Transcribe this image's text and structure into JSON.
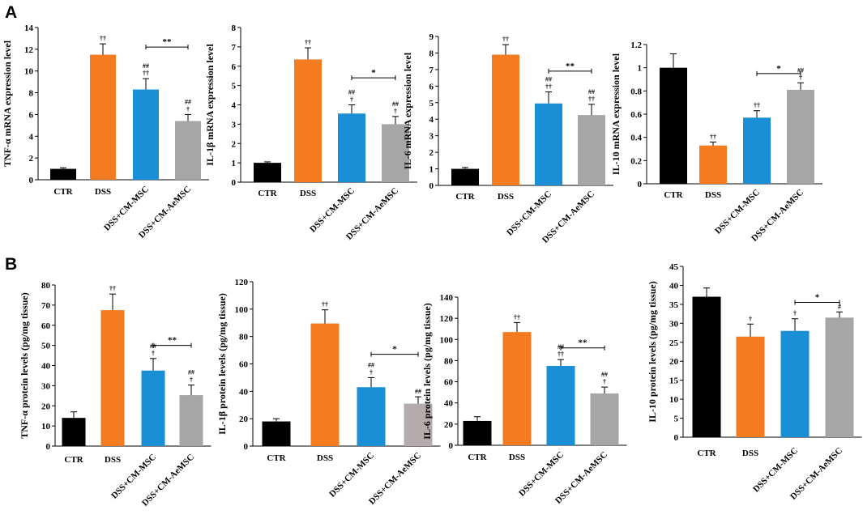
{
  "panels": [
    {
      "letter": "A"
    },
    {
      "letter": "B"
    }
  ],
  "colors": {
    "CTR": "#000000",
    "DSS": "#f47b20",
    "DSS+CM-MSC": "#1a8fd6",
    "DSS+CM-AeMSC": "#a6a6a6",
    "DSS+CM-AeMSC-alt": "#b4acac"
  },
  "chart_data": [
    {
      "type": "bar",
      "panel": "A",
      "ylabel": "TNF-α mRNA expression level",
      "ylim": [
        0,
        14
      ],
      "yticks": [
        0,
        2,
        4,
        6,
        8,
        10,
        12,
        14
      ],
      "categories": [
        "CTR",
        "DSS",
        "DSS+CM-MSC",
        "DSS+CM-AeMSC"
      ],
      "values": [
        1.0,
        11.5,
        8.3,
        5.4
      ],
      "errors": [
        0.1,
        1.0,
        1.0,
        0.6
      ],
      "annotations": [
        [],
        [
          "††"
        ],
        [
          "##",
          "††"
        ],
        [
          "##",
          "†"
        ]
      ],
      "sig": {
        "from": 2,
        "to": 3,
        "y": 12.2,
        "label": "**"
      }
    },
    {
      "type": "bar",
      "panel": "A",
      "ylabel": "IL-1β mRNA expression level",
      "ylim": [
        0,
        8
      ],
      "yticks": [
        0,
        1,
        2,
        3,
        4,
        5,
        6,
        7,
        8
      ],
      "categories": [
        "CTR",
        "DSS",
        "DSS+CM-MSC",
        "DSS+CM-AeMSC"
      ],
      "values": [
        1.0,
        6.35,
        3.55,
        3.0
      ],
      "errors": [
        0.05,
        0.6,
        0.45,
        0.4
      ],
      "annotations": [
        [],
        [
          "††"
        ],
        [
          "##",
          "†"
        ],
        [
          "##",
          "†"
        ]
      ],
      "sig": {
        "from": 2,
        "to": 3,
        "y": 5.4,
        "label": "*"
      }
    },
    {
      "type": "bar",
      "panel": "A",
      "ylabel": "IL-6 mRNA expression level",
      "ylim": [
        0,
        9
      ],
      "yticks": [
        0,
        1,
        2,
        3,
        4,
        5,
        6,
        7,
        8,
        9
      ],
      "categories": [
        "CTR",
        "DSS",
        "DSS+CM-MSC",
        "DSS+CM-AeMSC"
      ],
      "values": [
        1.0,
        7.9,
        4.95,
        4.25
      ],
      "errors": [
        0.08,
        0.6,
        0.7,
        0.65
      ],
      "annotations": [
        [],
        [
          "††"
        ],
        [
          "##",
          "††"
        ],
        [
          "##",
          "††"
        ]
      ],
      "sig": {
        "from": 2,
        "to": 3,
        "y": 6.9,
        "label": "**"
      }
    },
    {
      "type": "bar",
      "panel": "A",
      "ylabel": "IL-10 mRNA expression level",
      "ylim": [
        0,
        1.2
      ],
      "yticks": [
        0,
        0.2,
        0.4,
        0.6,
        0.8,
        1,
        1.2
      ],
      "categories": [
        "CTR",
        "DSS",
        "DSS+CM-MSC",
        "DSS+CM-AeMSC"
      ],
      "values": [
        1.0,
        0.33,
        0.57,
        0.81
      ],
      "errors": [
        0.12,
        0.03,
        0.06,
        0.06
      ],
      "annotations": [
        [],
        [
          "††"
        ],
        [
          "††"
        ],
        [
          "##",
          "†"
        ]
      ],
      "sig": {
        "from": 2,
        "to": 3,
        "y": 0.95,
        "label": "*"
      }
    },
    {
      "type": "bar",
      "panel": "B",
      "ylabel": "TNF-α protein levels (pg/mg tissue)",
      "ylim": [
        0,
        80
      ],
      "yticks": [
        0,
        10,
        20,
        30,
        40,
        50,
        60,
        70,
        80
      ],
      "categories": [
        "CTR",
        "DSS",
        "DSS+CM-MSC",
        "DSS+CM-AeMSC"
      ],
      "values": [
        14,
        67.5,
        37.5,
        25.3
      ],
      "errors": [
        3,
        8,
        6,
        5
      ],
      "annotations": [
        [],
        [
          "††"
        ],
        [
          "##",
          "†"
        ],
        [
          "##",
          "†"
        ]
      ],
      "sig": {
        "from": 2,
        "to": 3,
        "y": 50,
        "label": "**"
      }
    },
    {
      "type": "bar",
      "panel": "B",
      "ylabel": "IL-1β protein levels (pg/mg tissue)",
      "ylim": [
        0,
        120
      ],
      "yticks": [
        0,
        20,
        40,
        60,
        80,
        100,
        120
      ],
      "categories": [
        "CTR",
        "DSS",
        "DSS+CM-MSC",
        "DSS+CM-AeMSC"
      ],
      "values": [
        18,
        89.5,
        43,
        31
      ],
      "errors": [
        2,
        10,
        7,
        5
      ],
      "annotations": [
        [],
        [
          "††"
        ],
        [
          "##",
          "†"
        ],
        [
          "##"
        ]
      ],
      "sig": {
        "from": 2,
        "to": 3,
        "y": 67,
        "label": "*"
      }
    },
    {
      "type": "bar",
      "panel": "B",
      "ylabel": "IL-6 protein levels (pg/mg tissue)",
      "ylim": [
        0,
        140
      ],
      "yticks": [
        0,
        20,
        40,
        60,
        80,
        100,
        120,
        140
      ],
      "categories": [
        "CTR",
        "DSS",
        "DSS+CM-MSC",
        "DSS+CM-AeMSC"
      ],
      "values": [
        23,
        107,
        75,
        49
      ],
      "errors": [
        4,
        9,
        6,
        6
      ],
      "annotations": [
        [],
        [
          "††"
        ],
        [
          "##",
          "††"
        ],
        [
          "##",
          "†"
        ]
      ],
      "sig": {
        "from": 2,
        "to": 3,
        "y": 92,
        "label": "**"
      }
    },
    {
      "type": "bar",
      "panel": "B",
      "ylabel": "IL-10 protein levels (pg/mg tissue)",
      "ylim": [
        0,
        45
      ],
      "yticks": [
        0,
        5,
        10,
        15,
        20,
        25,
        30,
        35,
        40,
        45
      ],
      "categories": [
        "CTR",
        "DSS",
        "DSS+CM-MSC",
        "DSS+CM-AeMSC"
      ],
      "values": [
        37,
        26.5,
        28,
        31.5
      ],
      "errors": [
        2.3,
        3.3,
        3.2,
        1.5
      ],
      "annotations": [
        [],
        [
          "†"
        ],
        [
          "†"
        ],
        [
          "#"
        ]
      ],
      "sig": {
        "from": 2,
        "to": 3,
        "y": 35.5,
        "label": "*"
      }
    }
  ]
}
